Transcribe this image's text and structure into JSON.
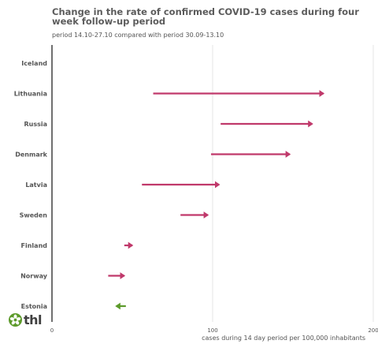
{
  "chart_data": {
    "type": "arrow",
    "title": "Change in the rate of confirmed COVID-19 cases during four week follow-up period",
    "subtitle": "period 14.10-27.10 compared with period 30.09-13.10",
    "xlabel": "cases during 14 day period per 100,000 inhabitants",
    "xlim": [
      0,
      200
    ],
    "x_ticks": [
      "0",
      "100",
      "200"
    ],
    "grid": true,
    "colors": {
      "increase": "#c0396b",
      "decrease": "#5c9a2a",
      "grid": "#e6e6e6",
      "axis": "#333333"
    },
    "categories": [
      "Iceland",
      "Lithuania",
      "Russia",
      "Denmark",
      "Latvia",
      "Sweden",
      "Finland",
      "Norway",
      "Estonia"
    ],
    "series": [
      {
        "values_start": [
          null,
          63,
          105,
          99,
          56,
          80,
          45,
          35,
          46
        ],
        "values_end": [
          null,
          169,
          162,
          148,
          104,
          97,
          50,
          45,
          40
        ]
      }
    ]
  },
  "logo": {
    "text": "thl"
  }
}
